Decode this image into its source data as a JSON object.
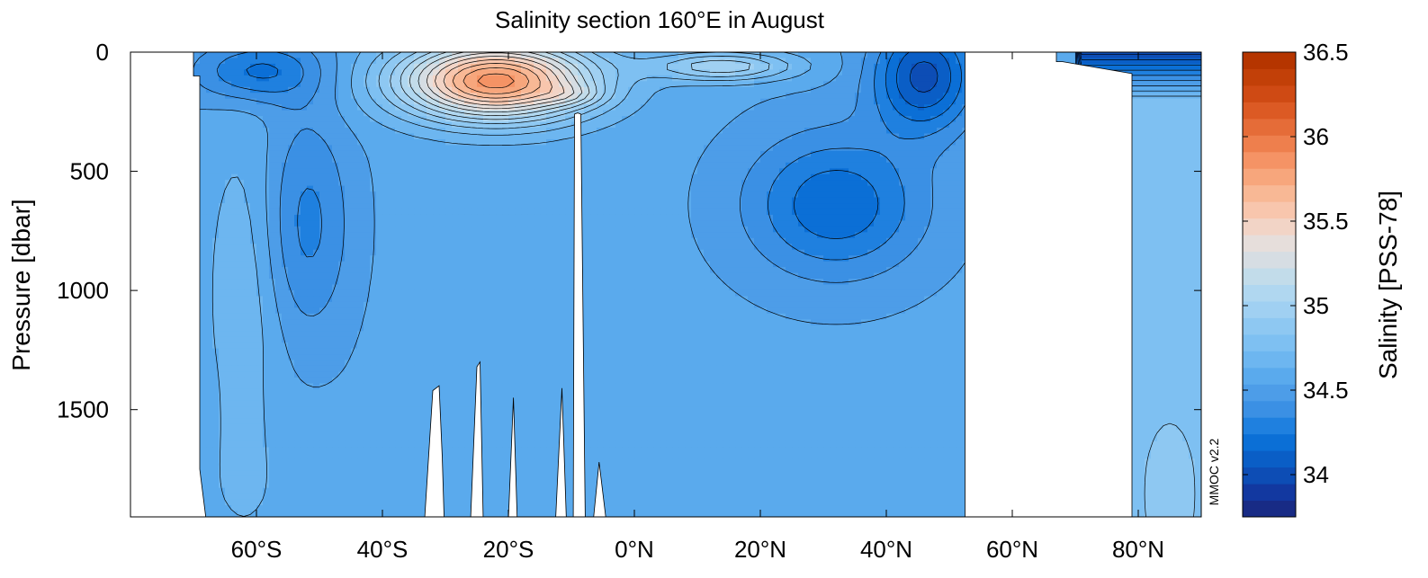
{
  "chart_data": {
    "type": "heatmap",
    "title": "Salinity section 160°E in August",
    "xlabel": "",
    "ylabel": "Pressure [dbar]",
    "colorbar_label": "Salinity [PSS-78]",
    "watermark": "MMOC v2.2",
    "xlim": [
      -80,
      90
    ],
    "ylim": [
      1950,
      0
    ],
    "x_ticks": [
      -60,
      -40,
      -20,
      0,
      20,
      40,
      60,
      80
    ],
    "x_tick_labels": [
      "60°S",
      "40°S",
      "20°S",
      "0°N",
      "20°N",
      "40°N",
      "60°N",
      "80°N"
    ],
    "y_ticks": [
      0,
      500,
      1000,
      1500
    ],
    "y_tick_labels": [
      "0",
      "500",
      "1000",
      "1500"
    ],
    "colorbar_range": [
      33.75,
      36.5
    ],
    "colorbar_ticks": [
      34,
      34.5,
      35,
      35.5,
      36,
      36.5
    ],
    "colorbar_tick_labels": [
      "34",
      "34.5",
      "35",
      "35.5",
      "36",
      "36.5"
    ],
    "contour_interval": 0.1,
    "grid": false,
    "data_extent": {
      "south_margin_lat": -70,
      "land_gap_lat": [
        52.5,
        67
      ],
      "arctic_coast_lat": 79
    },
    "features": [
      {
        "name": "subtropical salinity maximum",
        "lat_range": [
          -35,
          -5
        ],
        "pressure_range": [
          0,
          400
        ],
        "max_value": 35.9,
        "color_hex": "#f6b893"
      },
      {
        "name": "North Pacific low-salinity surface water",
        "lat_range": [
          40,
          52
        ],
        "pressure_range": [
          0,
          300
        ],
        "min_value": 33.8,
        "color_hex": "#1a2b8c"
      },
      {
        "name": "North Pacific intermediate water",
        "lat_range": [
          20,
          50
        ],
        "pressure_range": [
          400,
          1200
        ],
        "value": 34.2,
        "color_hex": "#0c55b8"
      },
      {
        "name": "Antarctic intermediate water",
        "lat_range": [
          -58,
          -45
        ],
        "pressure_range": [
          400,
          1300
        ],
        "value": 34.3,
        "color_hex": "#1168c9"
      },
      {
        "name": "deep water",
        "lat_range": [
          -70,
          52
        ],
        "pressure_range": [
          1300,
          1950
        ],
        "value": 34.6,
        "color_hex": "#5aaaed"
      },
      {
        "name": "Arctic deep water",
        "lat_range": [
          79,
          90
        ],
        "pressure_range": [
          250,
          1950
        ],
        "value": 34.8,
        "color_hex": "#8ec8f2"
      }
    ],
    "colors": {
      "bathymetry": "#ffffff",
      "contour_line": "#000000",
      "palette": [
        "#182b85",
        "#1238a0",
        "#0d4db5",
        "#0a5ec6",
        "#0b6fd6",
        "#1f80df",
        "#3b90e4",
        "#4d9de8",
        "#5aaaed",
        "#6db6f0",
        "#7ec0f2",
        "#8ec8f2",
        "#a0d0f2",
        "#b0d7f0",
        "#c2dcea",
        "#d6dde3",
        "#e6dedb",
        "#f2d4c6",
        "#f8c6ad",
        "#f8b895",
        "#f7a67c",
        "#f59365",
        "#ee7f4d",
        "#e56c38",
        "#dc5a24",
        "#cf4a14",
        "#c24008",
        "#b53500"
      ]
    }
  }
}
